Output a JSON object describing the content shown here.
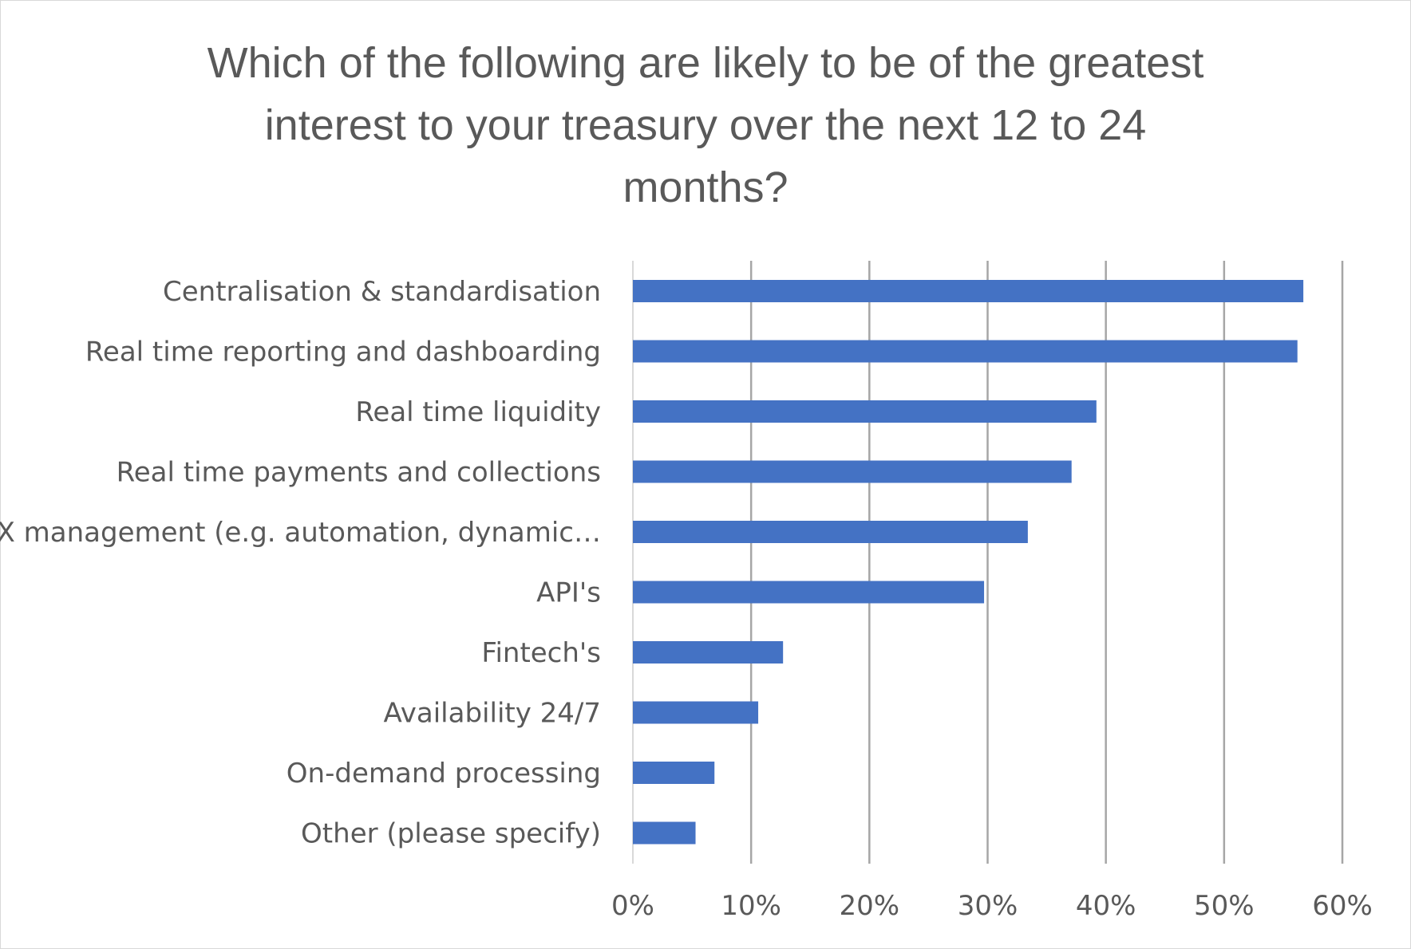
{
  "chart_data": {
    "type": "bar",
    "orientation": "horizontal",
    "title_lines": [
      "Which of the following are likely to be of the greatest",
      "interest to your treasury over the next 12 to 24",
      "months?"
    ],
    "categories": [
      "Centralisation & standardisation",
      "Real time reporting and dashboarding",
      "Real time liquidity",
      "Real time payments and collections",
      "FX management (e.g. automation, dynamic…",
      "API's",
      "Fintech's",
      "Availability 24/7",
      "On-demand processing",
      "Other (please specify)"
    ],
    "values": [
      0.567,
      0.562,
      0.392,
      0.371,
      0.334,
      0.297,
      0.127,
      0.106,
      0.069,
      0.053
    ],
    "xlim": [
      0,
      0.6
    ],
    "ticks": [
      0,
      0.1,
      0.2,
      0.3,
      0.4,
      0.5,
      0.6
    ],
    "tick_labels": [
      "0%",
      "10%",
      "20%",
      "30%",
      "40%",
      "50%",
      "60%"
    ],
    "grid": true,
    "legend": "none",
    "bar_color": "#4472c4",
    "gridline_color": "#a6a6a6"
  }
}
